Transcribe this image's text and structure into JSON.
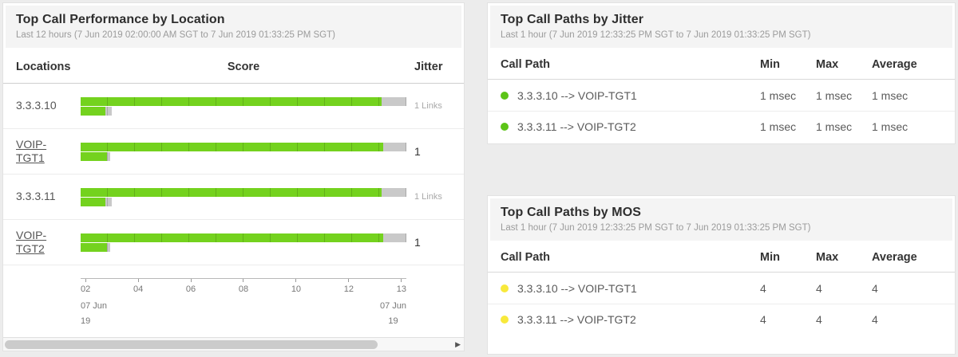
{
  "colors": {
    "bar_green": "#74d21e",
    "bar_gray": "#c9c9c9",
    "dot_green": "#5cc417",
    "dot_yellow": "#f8e93b"
  },
  "performance_panel": {
    "title": "Top Call Performance by Location",
    "subtitle": "Last 12 hours (7 Jun 2019 02:00:00 AM SGT to 7 Jun 2019 01:33:25 PM SGT)",
    "columns": {
      "locations": "Locations",
      "score": "Score",
      "jitter": "Jitter"
    },
    "rows": [
      {
        "location": "3.3.3.10",
        "jitter": "1 Links",
        "dot": "none",
        "main_green_pct": 92.5,
        "main_total_pct": 100,
        "sub_green_pct": 7.5,
        "sub_total_pct": 9.5
      },
      {
        "location": "VOIP-TGT1",
        "jitter": "1",
        "dot": "none",
        "main_green_pct": 93,
        "main_total_pct": 100,
        "sub_green_pct": 8,
        "sub_total_pct": 9
      },
      {
        "location": "3.3.3.11",
        "jitter": "1 Links",
        "dot": "none",
        "main_green_pct": 92.5,
        "main_total_pct": 100,
        "sub_green_pct": 7.5,
        "sub_total_pct": 9.5
      },
      {
        "location": "VOIP-TGT2",
        "jitter": "1",
        "dot": "none",
        "main_green_pct": 93,
        "main_total_pct": 100,
        "sub_green_pct": 8,
        "sub_total_pct": 9
      }
    ],
    "axis": {
      "ticks": [
        "02",
        "04",
        "06",
        "08",
        "10",
        "12",
        "13"
      ],
      "start_date": [
        "07 Jun",
        "19"
      ],
      "end_date": [
        "07 Jun",
        "19"
      ]
    },
    "scrollbar_thumb_pct": 81
  },
  "jitter_panel": {
    "title": "Top Call Paths by Jitter",
    "subtitle": "Last 1 hour (7 Jun 2019 12:33:25 PM SGT to 7 Jun 2019 01:33:25 PM SGT)",
    "columns": [
      "Call Path",
      "Min",
      "Max",
      "Average"
    ],
    "rows": [
      {
        "path": "3.3.3.10 --> VOIP-TGT1",
        "dot": "green",
        "min": "1 msec",
        "max": "1 msec",
        "avg": "1 msec"
      },
      {
        "path": "3.3.3.11 --> VOIP-TGT2",
        "dot": "green",
        "min": "1 msec",
        "max": "1 msec",
        "avg": "1 msec"
      }
    ]
  },
  "mos_panel": {
    "title": "Top Call Paths by MOS",
    "subtitle": "Last 1 hour (7 Jun 2019 12:33:25 PM SGT to 7 Jun 2019 01:33:25 PM SGT)",
    "columns": [
      "Call Path",
      "Min",
      "Max",
      "Average"
    ],
    "rows": [
      {
        "path": "3.3.3.10 --> VOIP-TGT1",
        "dot": "yellow",
        "min": "4",
        "max": "4",
        "avg": "4"
      },
      {
        "path": "3.3.3.11 --> VOIP-TGT2",
        "dot": "yellow",
        "min": "4",
        "max": "4",
        "avg": "4"
      }
    ]
  }
}
